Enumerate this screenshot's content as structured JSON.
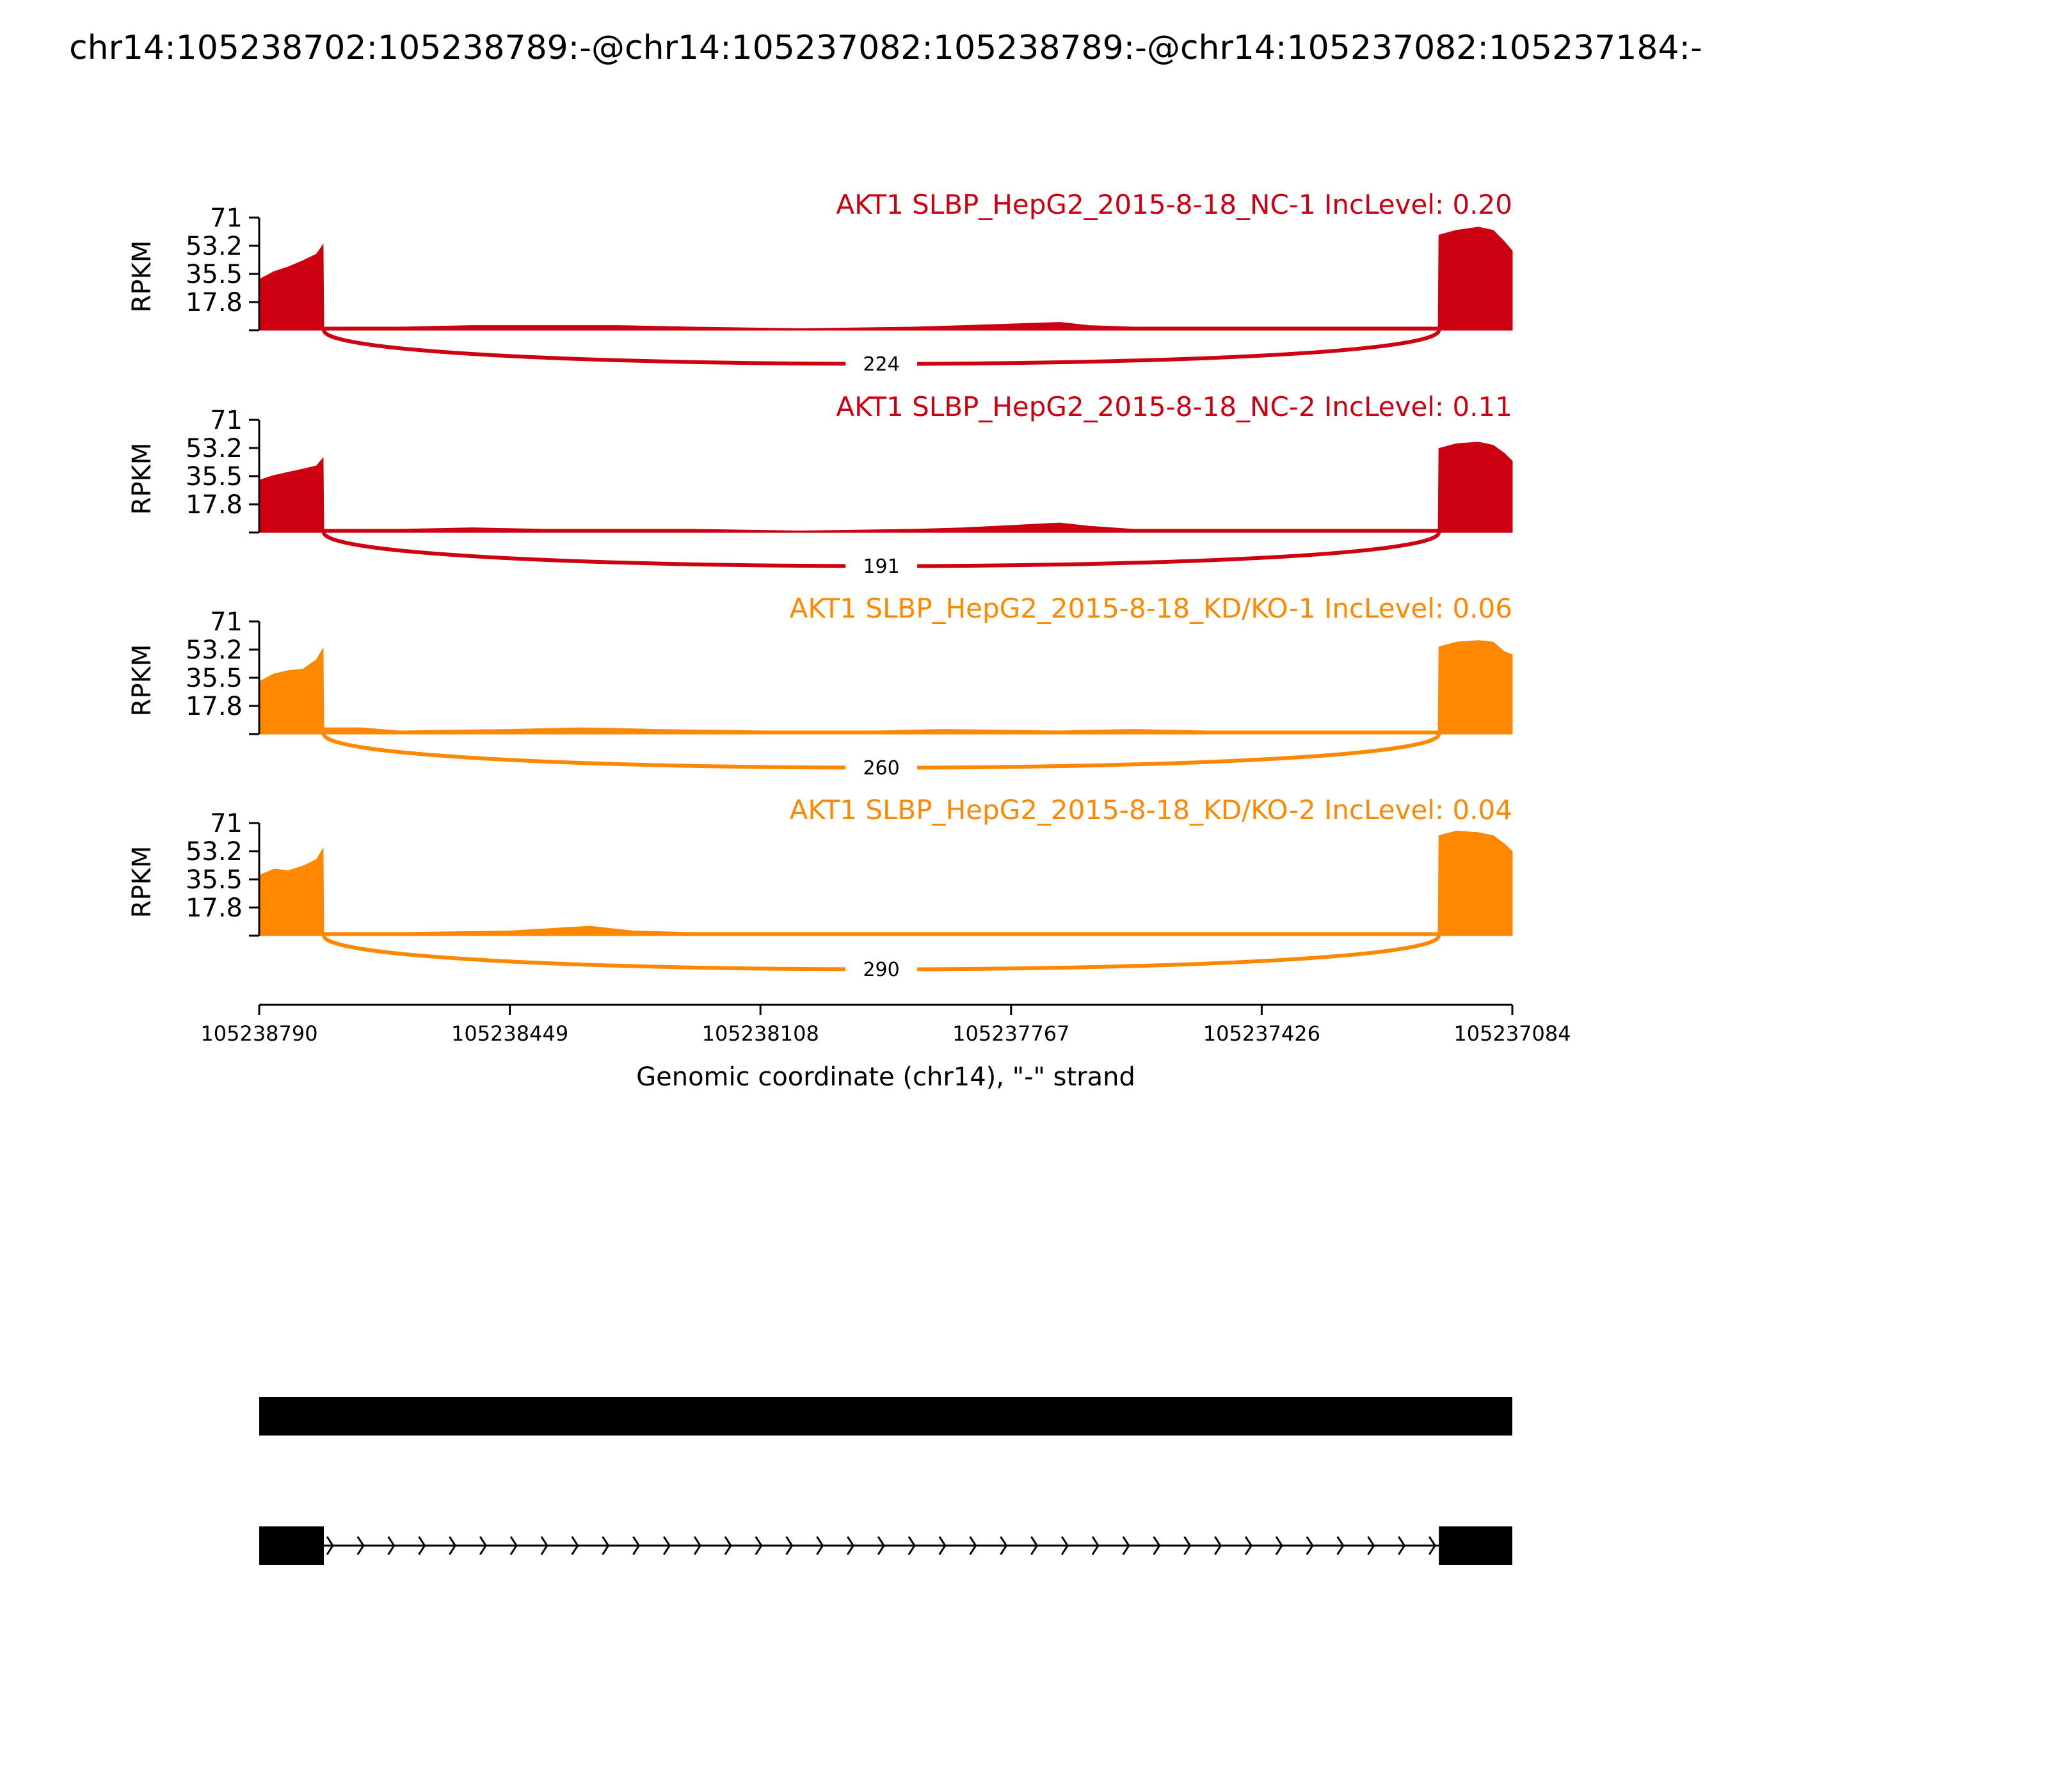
{
  "title": "chr14:105238702:105238789:-@chr14:105237082:105238789:-@chr14:105237082:105237184:-",
  "colors": {
    "nc": "#cc0011",
    "kd": "#ff8800",
    "axis": "#000000",
    "gene": "#000000"
  },
  "chart_data": {
    "type": "area",
    "xlabel": "Genomic coordinate (chr14), \"-\" strand",
    "xlim": [
      105238790,
      105237084
    ],
    "x_ticks": [
      "105238790",
      "105238449",
      "105238108",
      "105237767",
      "105237426",
      "105237084"
    ],
    "ylabel": "RPKM",
    "ylim": [
      0,
      71
    ],
    "y_ticks": [
      "71",
      "53.2",
      "35.5",
      "17.8"
    ],
    "exons": [
      {
        "start": 105238790,
        "end": 105238702
      },
      {
        "start": 105237184,
        "end": 105237084
      }
    ],
    "tracks": [
      {
        "label": "AKT1 SLBP_HepG2_2015-8-18_NC-1 IncLevel: 0.20",
        "group": "nc",
        "junction_count": "224",
        "coverage": [
          [
            105238790,
            32
          ],
          [
            105238770,
            37
          ],
          [
            105238750,
            40
          ],
          [
            105238730,
            44
          ],
          [
            105238712,
            48
          ],
          [
            105238703,
            54
          ],
          [
            105238702,
            2
          ],
          [
            105238600,
            2
          ],
          [
            105238500,
            3
          ],
          [
            105238400,
            3
          ],
          [
            105238300,
            3
          ],
          [
            105238200,
            2
          ],
          [
            105238055,
            1
          ],
          [
            105237900,
            2
          ],
          [
            105237830,
            3
          ],
          [
            105237700,
            5
          ],
          [
            105237660,
            3
          ],
          [
            105237600,
            2
          ],
          [
            105237400,
            2
          ],
          [
            105237300,
            2
          ],
          [
            105237185,
            2
          ],
          [
            105237184,
            60
          ],
          [
            105237160,
            63
          ],
          [
            105237130,
            65
          ],
          [
            105237110,
            63
          ],
          [
            105237095,
            56
          ],
          [
            105237084,
            50
          ]
        ]
      },
      {
        "label": "AKT1 SLBP_HepG2_2015-8-18_NC-2 IncLevel: 0.11",
        "group": "nc",
        "junction_count": "191",
        "coverage": [
          [
            105238790,
            33
          ],
          [
            105238770,
            36
          ],
          [
            105238750,
            38
          ],
          [
            105238730,
            40
          ],
          [
            105238712,
            42
          ],
          [
            105238703,
            47
          ],
          [
            105238702,
            2
          ],
          [
            105238600,
            2
          ],
          [
            105238500,
            3
          ],
          [
            105238400,
            2
          ],
          [
            105238300,
            2
          ],
          [
            105238200,
            2
          ],
          [
            105238055,
            1
          ],
          [
            105237900,
            2
          ],
          [
            105237830,
            3
          ],
          [
            105237700,
            6
          ],
          [
            105237660,
            4
          ],
          [
            105237600,
            2
          ],
          [
            105237400,
            2
          ],
          [
            105237300,
            2
          ],
          [
            105237185,
            2
          ],
          [
            105237184,
            53
          ],
          [
            105237160,
            56
          ],
          [
            105237130,
            57
          ],
          [
            105237110,
            55
          ],
          [
            105237095,
            50
          ],
          [
            105237084,
            45
          ]
        ]
      },
      {
        "label": "AKT1 SLBP_HepG2_2015-8-18_KD/KO-1 IncLevel: 0.06",
        "group": "kd",
        "junction_count": "260",
        "coverage": [
          [
            105238790,
            33
          ],
          [
            105238770,
            38
          ],
          [
            105238750,
            40
          ],
          [
            105238730,
            41
          ],
          [
            105238712,
            47
          ],
          [
            105238703,
            54
          ],
          [
            105238702,
            4
          ],
          [
            105238650,
            4
          ],
          [
            105238600,
            2
          ],
          [
            105238450,
            3
          ],
          [
            105238350,
            4
          ],
          [
            105238250,
            3
          ],
          [
            105238100,
            2
          ],
          [
            105237950,
            2
          ],
          [
            105237860,
            3
          ],
          [
            105237700,
            2
          ],
          [
            105237600,
            3
          ],
          [
            105237500,
            2
          ],
          [
            105237400,
            2
          ],
          [
            105237300,
            2
          ],
          [
            105237185,
            2
          ],
          [
            105237184,
            55
          ],
          [
            105237160,
            58
          ],
          [
            105237130,
            59
          ],
          [
            105237110,
            58
          ],
          [
            105237095,
            52
          ],
          [
            105237084,
            50
          ]
        ]
      },
      {
        "label": "AKT1 SLBP_HepG2_2015-8-18_KD/KO-2 IncLevel: 0.04",
        "group": "kd",
        "junction_count": "290",
        "coverage": [
          [
            105238790,
            38
          ],
          [
            105238770,
            42
          ],
          [
            105238750,
            41
          ],
          [
            105238730,
            44
          ],
          [
            105238712,
            48
          ],
          [
            105238703,
            55
          ],
          [
            105238702,
            2
          ],
          [
            105238600,
            2
          ],
          [
            105238450,
            3
          ],
          [
            105238340,
            6
          ],
          [
            105238280,
            3
          ],
          [
            105238200,
            2
          ],
          [
            105238100,
            2
          ],
          [
            105237900,
            2
          ],
          [
            105237700,
            2
          ],
          [
            105237600,
            2
          ],
          [
            105237500,
            2
          ],
          [
            105237400,
            2
          ],
          [
            105237300,
            2
          ],
          [
            105237185,
            2
          ],
          [
            105237184,
            63
          ],
          [
            105237160,
            66
          ],
          [
            105237130,
            65
          ],
          [
            105237110,
            63
          ],
          [
            105237095,
            58
          ],
          [
            105237084,
            53
          ]
        ]
      }
    ]
  }
}
